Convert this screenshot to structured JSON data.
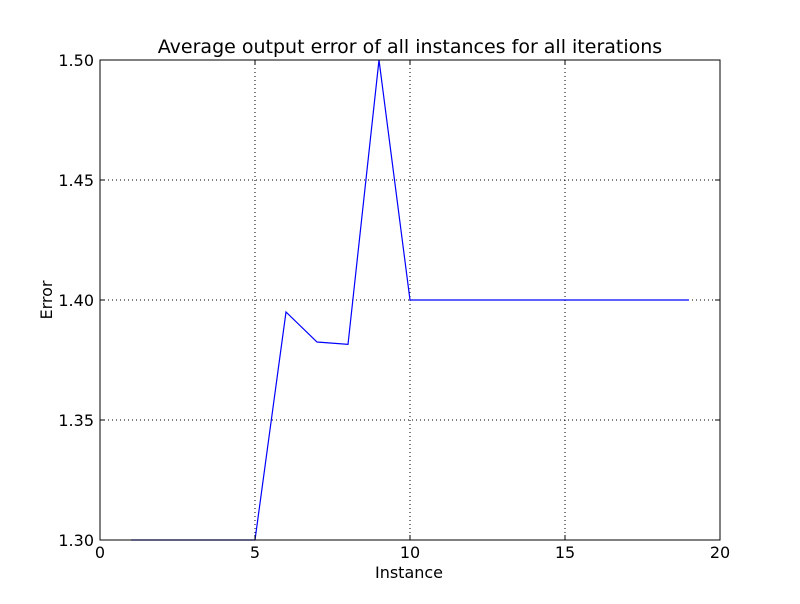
{
  "chart_data": {
    "type": "line",
    "title": "Average output error of all instances for all iterations",
    "xlabel": "Instance",
    "ylabel": "Error",
    "xlim": [
      0,
      20
    ],
    "ylim": [
      1.3,
      1.5
    ],
    "xticks": [
      0,
      5,
      10,
      15,
      20
    ],
    "yticks": [
      1.3,
      1.35,
      1.4,
      1.45,
      1.5
    ],
    "xtick_labels": [
      "0",
      "5",
      "10",
      "15",
      "20"
    ],
    "ytick_labels": [
      "1.30",
      "1.35",
      "1.40",
      "1.45",
      "1.50"
    ],
    "grid": true,
    "series": [
      {
        "color": "#0000ff",
        "x": [
          1,
          2,
          3,
          4,
          5,
          6,
          7,
          8,
          9,
          10,
          11,
          12,
          13,
          14,
          15,
          16,
          17,
          18,
          19
        ],
        "y": [
          1.3,
          1.3,
          1.3,
          1.3,
          1.3,
          1.395,
          1.3825,
          1.3815,
          1.5,
          1.4,
          1.4,
          1.4,
          1.4,
          1.4,
          1.4,
          1.4,
          1.4,
          1.4,
          1.4
        ]
      }
    ]
  }
}
